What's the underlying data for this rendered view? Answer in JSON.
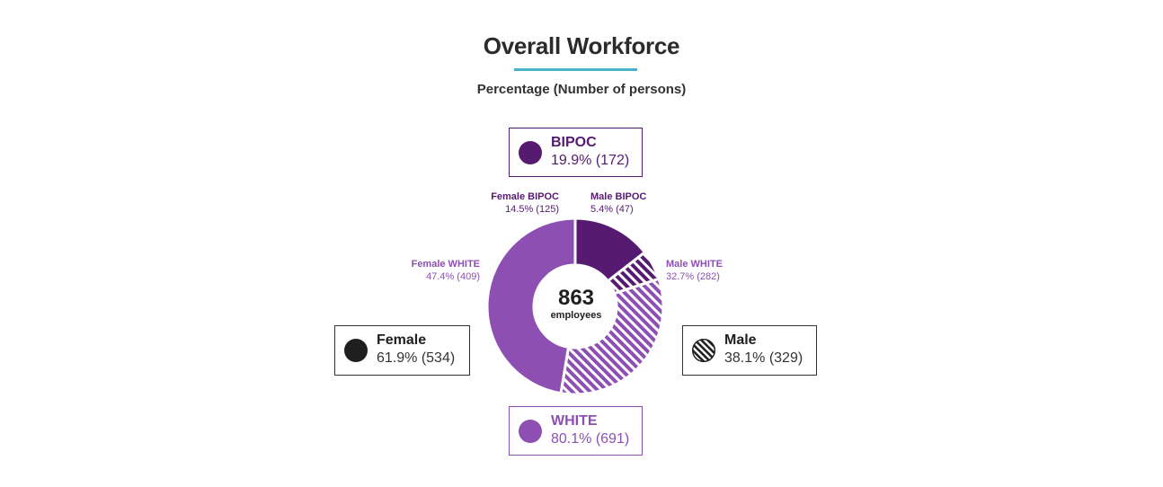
{
  "title": "Overall Workforce",
  "subtitle": "Percentage (Number of persons)",
  "center": {
    "value": "863",
    "label": "employees"
  },
  "colors": {
    "bipoc": "#561a70",
    "white": "#8e4fb3",
    "female_dot": "#1f1f1f",
    "male_dot": "#1f1f1f",
    "accent_rule": "#4ab3c9"
  },
  "legend": {
    "bipoc": {
      "name": "BIPOC",
      "value": "19.9% (172)"
    },
    "white": {
      "name": "WHITE",
      "value": "80.1% (691)"
    },
    "female": {
      "name": "Female",
      "value": "61.9% (534)"
    },
    "male": {
      "name": "Male",
      "value": "38.1% (329)"
    }
  },
  "chart_data": {
    "type": "pie",
    "subtype": "donut",
    "total": 863,
    "segments": [
      {
        "name": "Female BIPOC",
        "value": 125,
        "percent": 14.5,
        "label": "14.5% (125)",
        "color": "#561a70",
        "pattern": "solid"
      },
      {
        "name": "Male BIPOC",
        "value": 47,
        "percent": 5.4,
        "label": "5.4% (47)",
        "color": "#561a70",
        "pattern": "hatched"
      },
      {
        "name": "Male WHITE",
        "value": 282,
        "percent": 32.7,
        "label": "32.7% (282)",
        "color": "#8e4fb3",
        "pattern": "hatched"
      },
      {
        "name": "Female WHITE",
        "value": 409,
        "percent": 47.4,
        "label": "47.4% (409)",
        "color": "#8e4fb3",
        "pattern": "solid"
      }
    ]
  }
}
